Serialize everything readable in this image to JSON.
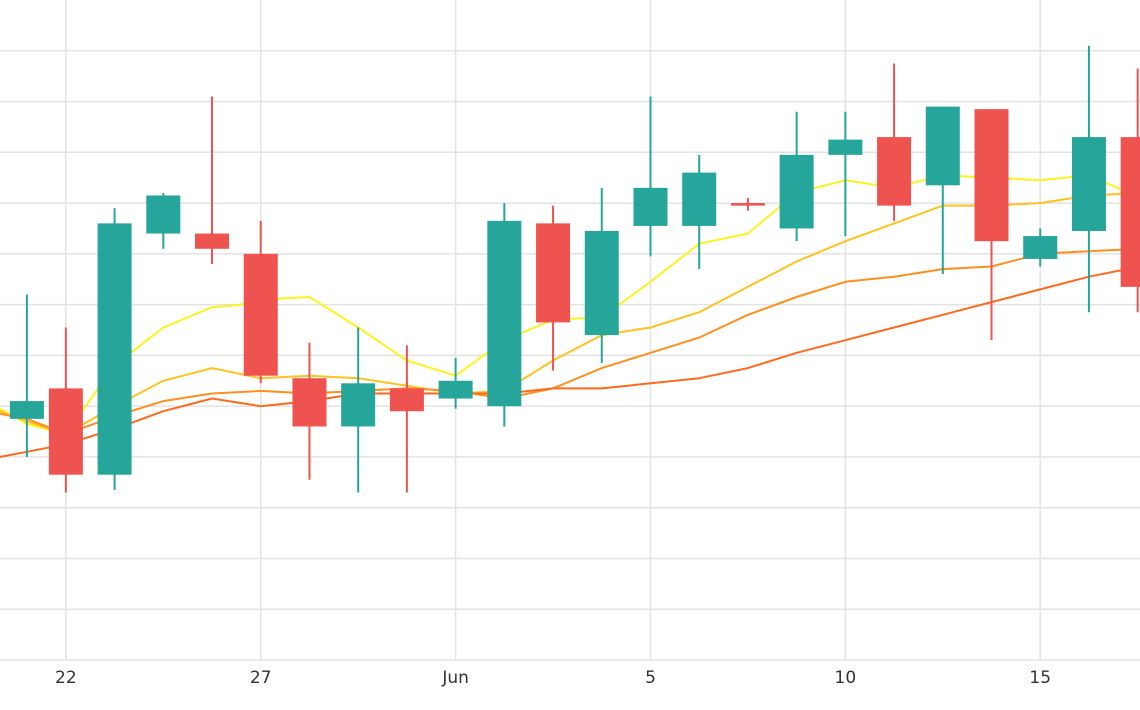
{
  "chart_data": {
    "type": "candlestick",
    "title": "",
    "xlabel": "",
    "ylabel": "",
    "grid": true,
    "legend": "none",
    "x_ticks": [
      {
        "day": 22,
        "label": "22"
      },
      {
        "day": 27,
        "label": "27"
      },
      {
        "day": 32,
        "label": "Jun"
      },
      {
        "day": 37,
        "label": "5"
      },
      {
        "day": 42,
        "label": "10"
      },
      {
        "day": 47,
        "label": "15"
      }
    ],
    "xlim": [
      20.31,
      49.56
    ],
    "ylim": [
      0,
      13
    ],
    "y_gridlines": [
      1,
      2,
      3,
      4,
      5,
      6,
      7,
      8,
      9,
      10,
      11,
      12
    ],
    "up_color": "#26a69a",
    "down_color": "#ef5350",
    "candles": [
      {
        "day": 21.0,
        "open": 4.75,
        "high": 7.2,
        "low": 4.0,
        "close": 5.1
      },
      {
        "day": 22.0,
        "open": 5.35,
        "high": 6.55,
        "low": 3.3,
        "close": 3.65
      },
      {
        "day": 23.25,
        "open": 3.65,
        "high": 8.9,
        "low": 3.35,
        "close": 8.6
      },
      {
        "day": 24.5,
        "open": 8.4,
        "high": 9.2,
        "low": 8.1,
        "close": 9.15
      },
      {
        "day": 25.75,
        "open": 8.4,
        "high": 11.1,
        "low": 7.8,
        "close": 8.1
      },
      {
        "day": 27.0,
        "open": 8.0,
        "high": 8.65,
        "low": 5.45,
        "close": 5.6
      },
      {
        "day": 28.25,
        "open": 5.55,
        "high": 6.25,
        "low": 3.55,
        "close": 4.6
      },
      {
        "day": 29.5,
        "open": 4.6,
        "high": 6.55,
        "low": 3.3,
        "close": 5.45
      },
      {
        "day": 30.75,
        "open": 5.35,
        "high": 6.2,
        "low": 3.3,
        "close": 4.9
      },
      {
        "day": 32.0,
        "open": 5.15,
        "high": 5.95,
        "low": 4.95,
        "close": 5.5
      },
      {
        "day": 33.25,
        "open": 5.0,
        "high": 9.0,
        "low": 4.6,
        "close": 8.65
      },
      {
        "day": 34.5,
        "open": 8.6,
        "high": 8.95,
        "low": 5.7,
        "close": 6.65
      },
      {
        "day": 35.75,
        "open": 6.4,
        "high": 9.3,
        "low": 5.85,
        "close": 8.45
      },
      {
        "day": 37.0,
        "open": 8.55,
        "high": 11.1,
        "low": 7.95,
        "close": 9.3
      },
      {
        "day": 38.25,
        "open": 8.55,
        "high": 9.95,
        "low": 7.7,
        "close": 9.6
      },
      {
        "day": 39.5,
        "open": 9.0,
        "high": 9.1,
        "low": 8.85,
        "close": 8.95
      },
      {
        "day": 40.75,
        "open": 8.5,
        "high": 10.8,
        "low": 8.25,
        "close": 9.95
      },
      {
        "day": 42.0,
        "open": 9.95,
        "high": 10.8,
        "low": 8.35,
        "close": 10.25
      },
      {
        "day": 43.25,
        "open": 10.3,
        "high": 11.75,
        "low": 8.65,
        "close": 8.95
      },
      {
        "day": 44.5,
        "open": 9.35,
        "high": 10.85,
        "low": 7.6,
        "close": 10.9
      },
      {
        "day": 45.75,
        "open": 10.85,
        "high": 10.85,
        "low": 6.3,
        "close": 8.25
      },
      {
        "day": 47.0,
        "open": 7.9,
        "high": 8.5,
        "low": 7.75,
        "close": 8.35
      },
      {
        "day": 48.25,
        "open": 8.45,
        "high": 12.1,
        "low": 6.85,
        "close": 10.3
      },
      {
        "day": 49.5,
        "open": 10.3,
        "high": 11.65,
        "low": 6.85,
        "close": 7.35
      }
    ],
    "series": [
      {
        "color": "#fff21f",
        "values": [
          [
            20.31,
            4.95
          ],
          [
            21.0,
            4.65
          ],
          [
            22.0,
            4.45
          ],
          [
            23.25,
            5.8
          ],
          [
            24.5,
            6.55
          ],
          [
            25.75,
            6.95
          ],
          [
            26.5,
            7.0
          ],
          [
            27.0,
            7.1
          ],
          [
            28.25,
            7.15
          ],
          [
            29.5,
            6.55
          ],
          [
            30.75,
            5.9
          ],
          [
            32.0,
            5.6
          ],
          [
            33.25,
            6.3
          ],
          [
            34.5,
            6.7
          ],
          [
            35.75,
            6.75
          ],
          [
            37.0,
            7.45
          ],
          [
            38.25,
            8.2
          ],
          [
            39.5,
            8.4
          ],
          [
            40.75,
            9.2
          ],
          [
            42.0,
            9.45
          ],
          [
            43.25,
            9.3
          ],
          [
            44.5,
            9.55
          ],
          [
            45.75,
            9.5
          ],
          [
            47.0,
            9.45
          ],
          [
            48.25,
            9.55
          ],
          [
            49.56,
            9.1
          ]
        ]
      },
      {
        "color": "#ffc21f",
        "values": [
          [
            20.31,
            4.9
          ],
          [
            21.0,
            4.7
          ],
          [
            22.0,
            4.45
          ],
          [
            23.25,
            5.0
          ],
          [
            24.5,
            5.5
          ],
          [
            25.75,
            5.75
          ],
          [
            27.0,
            5.55
          ],
          [
            28.25,
            5.6
          ],
          [
            29.5,
            5.55
          ],
          [
            30.75,
            5.4
          ],
          [
            32.0,
            5.25
          ],
          [
            33.25,
            5.3
          ],
          [
            34.5,
            5.9
          ],
          [
            35.75,
            6.4
          ],
          [
            37.0,
            6.55
          ],
          [
            38.25,
            6.85
          ],
          [
            39.5,
            7.35
          ],
          [
            40.75,
            7.85
          ],
          [
            42.0,
            8.25
          ],
          [
            43.25,
            8.6
          ],
          [
            44.5,
            8.95
          ],
          [
            45.75,
            8.95
          ],
          [
            47.0,
            9.0
          ],
          [
            48.25,
            9.15
          ],
          [
            49.56,
            9.2
          ]
        ]
      },
      {
        "color": "#ff8f1f",
        "values": [
          [
            20.31,
            4.85
          ],
          [
            21.0,
            4.75
          ],
          [
            22.0,
            4.45
          ],
          [
            23.25,
            4.8
          ],
          [
            24.5,
            5.1
          ],
          [
            25.75,
            5.25
          ],
          [
            27.0,
            5.3
          ],
          [
            28.25,
            5.25
          ],
          [
            29.5,
            5.3
          ],
          [
            30.75,
            5.35
          ],
          [
            32.0,
            5.3
          ],
          [
            33.25,
            5.15
          ],
          [
            34.5,
            5.35
          ],
          [
            35.75,
            5.75
          ],
          [
            37.0,
            6.05
          ],
          [
            38.25,
            6.35
          ],
          [
            39.5,
            6.8
          ],
          [
            40.75,
            7.15
          ],
          [
            42.0,
            7.45
          ],
          [
            43.25,
            7.55
          ],
          [
            44.5,
            7.7
          ],
          [
            45.75,
            7.75
          ],
          [
            47.0,
            8.0
          ],
          [
            48.25,
            8.05
          ],
          [
            49.56,
            8.1
          ]
        ]
      },
      {
        "color": "#ff6a1f",
        "values": [
          [
            20.31,
            4.0
          ],
          [
            21.0,
            4.1
          ],
          [
            22.0,
            4.25
          ],
          [
            23.25,
            4.55
          ],
          [
            24.5,
            4.9
          ],
          [
            25.75,
            5.15
          ],
          [
            27.0,
            5.0
          ],
          [
            28.25,
            5.1
          ],
          [
            29.5,
            5.25
          ],
          [
            30.75,
            5.25
          ],
          [
            32.0,
            5.25
          ],
          [
            33.25,
            5.25
          ],
          [
            34.5,
            5.35
          ],
          [
            35.75,
            5.35
          ],
          [
            37.0,
            5.45
          ],
          [
            38.25,
            5.55
          ],
          [
            39.5,
            5.75
          ],
          [
            40.75,
            6.05
          ],
          [
            42.0,
            6.3
          ],
          [
            43.25,
            6.55
          ],
          [
            44.5,
            6.8
          ],
          [
            45.75,
            7.05
          ],
          [
            47.0,
            7.3
          ],
          [
            48.25,
            7.55
          ],
          [
            49.56,
            7.75
          ]
        ]
      }
    ]
  }
}
